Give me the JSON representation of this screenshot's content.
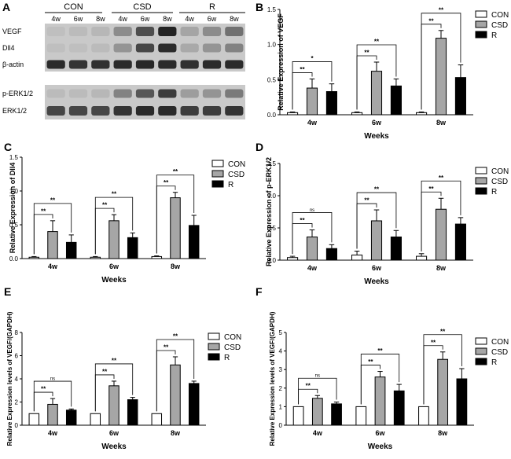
{
  "colors": {
    "CON": "#ffffff",
    "CSD": "#a6a6a6",
    "R": "#000000",
    "axis": "#000000",
    "blot_bg": "#c9c9c9",
    "band": "#1a1a1a"
  },
  "blot": {
    "panel_label": "A",
    "groups": [
      "CON",
      "CSD",
      "R"
    ],
    "lanes": [
      "4w",
      "6w",
      "8w",
      "4w",
      "6w",
      "8w",
      "4w",
      "6w",
      "8w"
    ],
    "rows": [
      "VEGF",
      "Dll4",
      "β-actin",
      "p-ERK1/2",
      "ERK1/2"
    ],
    "intensity": [
      [
        0.05,
        0.08,
        0.1,
        0.35,
        0.7,
        0.95,
        0.2,
        0.35,
        0.5
      ],
      [
        0.05,
        0.06,
        0.08,
        0.3,
        0.75,
        0.9,
        0.18,
        0.3,
        0.4
      ],
      [
        0.9,
        0.85,
        0.88,
        0.9,
        0.92,
        0.9,
        0.88,
        0.9,
        0.9
      ],
      [
        0.08,
        0.08,
        0.1,
        0.4,
        0.65,
        0.8,
        0.25,
        0.3,
        0.45
      ],
      [
        0.75,
        0.75,
        0.75,
        0.85,
        0.9,
        0.9,
        0.8,
        0.8,
        0.85
      ]
    ]
  },
  "chart_data": [
    {
      "panel": "B",
      "type": "bar",
      "categories": [
        "4w",
        "6w",
        "8w"
      ],
      "series": [
        {
          "name": "CON",
          "values": [
            0.03,
            0.03,
            0.03
          ],
          "errors": [
            0.01,
            0.01,
            0.01
          ]
        },
        {
          "name": "CSD",
          "values": [
            0.38,
            0.62,
            1.09
          ],
          "errors": [
            0.13,
            0.13,
            0.11
          ]
        },
        {
          "name": "R",
          "values": [
            0.33,
            0.41,
            0.53
          ],
          "errors": [
            0.11,
            0.1,
            0.18
          ]
        }
      ],
      "ylim": [
        0,
        1.5
      ],
      "yticks": [
        "0.0",
        "0.5",
        "1.0",
        "1.5"
      ],
      "xlabel": "Weeks",
      "ylabel": "Relative Expression of VEGF",
      "significance": [
        {
          "group": 0,
          "to": 1,
          "label": "**"
        },
        {
          "group": 0,
          "to": 2,
          "label": "*"
        },
        {
          "group": 1,
          "to": 1,
          "label": "**"
        },
        {
          "group": 1,
          "to": 2,
          "label": "**"
        },
        {
          "group": 2,
          "to": 1,
          "label": "**"
        },
        {
          "group": 2,
          "to": 2,
          "label": "**"
        }
      ],
      "legend": [
        "CON",
        "CSD",
        "R"
      ]
    },
    {
      "panel": "C",
      "type": "bar",
      "categories": [
        "4w",
        "6w",
        "8w"
      ],
      "series": [
        {
          "name": "CON",
          "values": [
            0.02,
            0.02,
            0.03
          ],
          "errors": [
            0.01,
            0.01,
            0.01
          ]
        },
        {
          "name": "CSD",
          "values": [
            0.4,
            0.56,
            0.9
          ],
          "errors": [
            0.16,
            0.09,
            0.08
          ]
        },
        {
          "name": "R",
          "values": [
            0.24,
            0.31,
            0.49
          ],
          "errors": [
            0.11,
            0.07,
            0.15
          ]
        }
      ],
      "ylim": [
        0,
        1.5
      ],
      "yticks": [
        "0.0",
        "0.5",
        "1.0",
        "1.5"
      ],
      "xlabel": "Weeks",
      "ylabel": "Relative Expression of Dll4",
      "significance": [
        {
          "group": 0,
          "to": 1,
          "label": "**"
        },
        {
          "group": 0,
          "to": 2,
          "label": "**"
        },
        {
          "group": 1,
          "to": 1,
          "label": "**"
        },
        {
          "group": 1,
          "to": 2,
          "label": "**"
        },
        {
          "group": 2,
          "to": 1,
          "label": "**"
        },
        {
          "group": 2,
          "to": 2,
          "label": "**"
        }
      ],
      "legend": [
        "CON",
        "CSD",
        "R"
      ]
    },
    {
      "panel": "D",
      "type": "bar",
      "categories": [
        "4w",
        "6w",
        "8w"
      ],
      "series": [
        {
          "name": "CON",
          "values": [
            0.04,
            0.08,
            0.06
          ],
          "errors": [
            0.02,
            0.06,
            0.04
          ]
        },
        {
          "name": "CSD",
          "values": [
            0.36,
            0.61,
            0.79
          ],
          "errors": [
            0.11,
            0.17,
            0.17
          ]
        },
        {
          "name": "R",
          "values": [
            0.18,
            0.36,
            0.56
          ],
          "errors": [
            0.06,
            0.1,
            0.1
          ]
        }
      ],
      "ylim": [
        0,
        1.5
      ],
      "yticks": [
        "0.0",
        "0.5",
        "1.0",
        "1.5"
      ],
      "xlabel": "Weeks",
      "ylabel": "Relative Expression of p-ERK1/2",
      "significance": [
        {
          "group": 0,
          "to": 1,
          "label": "**"
        },
        {
          "group": 0,
          "to": 2,
          "label": "ns"
        },
        {
          "group": 1,
          "to": 1,
          "label": "**"
        },
        {
          "group": 1,
          "to": 2,
          "label": "**"
        },
        {
          "group": 2,
          "to": 1,
          "label": "**"
        },
        {
          "group": 2,
          "to": 2,
          "label": "**"
        }
      ],
      "legend": [
        "CON",
        "CSD",
        "R"
      ]
    },
    {
      "panel": "E",
      "type": "bar",
      "categories": [
        "4w",
        "6w",
        "8w"
      ],
      "series": [
        {
          "name": "CON",
          "values": [
            1.0,
            1.0,
            1.0
          ],
          "errors": [
            0,
            0,
            0
          ]
        },
        {
          "name": "CSD",
          "values": [
            1.8,
            3.4,
            5.2
          ],
          "errors": [
            0.5,
            0.4,
            0.7
          ]
        },
        {
          "name": "R",
          "values": [
            1.3,
            2.2,
            3.6
          ],
          "errors": [
            0.1,
            0.2,
            0.2
          ]
        }
      ],
      "ylim": [
        0,
        8
      ],
      "yticks": [
        "0",
        "2",
        "4",
        "6",
        "8"
      ],
      "xlabel": "Weeks",
      "ylabel": "Relative Expression levels of VEGF/(GAPDH)",
      "significance": [
        {
          "group": 0,
          "to": 1,
          "label": "**"
        },
        {
          "group": 0,
          "to": 2,
          "label": "ns"
        },
        {
          "group": 1,
          "to": 1,
          "label": "**"
        },
        {
          "group": 1,
          "to": 2,
          "label": "**"
        },
        {
          "group": 2,
          "to": 1,
          "label": "**"
        },
        {
          "group": 2,
          "to": 2,
          "label": "**"
        }
      ],
      "legend": [
        "CON",
        "CSD",
        "R"
      ]
    },
    {
      "panel": "F",
      "type": "bar",
      "categories": [
        "4w",
        "6w",
        "8w"
      ],
      "series": [
        {
          "name": "CON",
          "values": [
            1.0,
            1.0,
            1.0
          ],
          "errors": [
            0,
            0,
            0
          ]
        },
        {
          "name": "CSD",
          "values": [
            1.45,
            2.6,
            3.55
          ],
          "errors": [
            0.15,
            0.3,
            0.4
          ]
        },
        {
          "name": "R",
          "values": [
            1.15,
            1.85,
            2.5
          ],
          "errors": [
            0.1,
            0.35,
            0.55
          ]
        }
      ],
      "ylim": [
        0,
        5
      ],
      "yticks": [
        "0",
        "1",
        "2",
        "3",
        "4",
        "5"
      ],
      "xlabel": "Weeks",
      "ylabel": "Relative Expression levels of VEGF/(GAPDH)",
      "significance": [
        {
          "group": 0,
          "to": 1,
          "label": "**"
        },
        {
          "group": 0,
          "to": 2,
          "label": "ns"
        },
        {
          "group": 1,
          "to": 1,
          "label": "**"
        },
        {
          "group": 1,
          "to": 2,
          "label": "**"
        },
        {
          "group": 2,
          "to": 1,
          "label": "**"
        },
        {
          "group": 2,
          "to": 2,
          "label": "**"
        }
      ],
      "legend": [
        "CON",
        "CSD",
        "R"
      ]
    }
  ]
}
